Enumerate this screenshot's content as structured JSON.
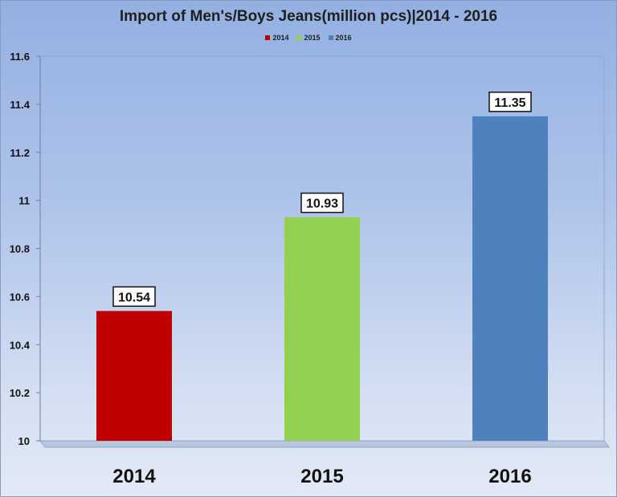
{
  "chart_data": {
    "type": "bar",
    "title": "Import of Men's/Boys Jeans(million pcs)|2014 - 2016",
    "categories": [
      "2014",
      "2015",
      "2016"
    ],
    "values": [
      10.54,
      10.93,
      11.35
    ],
    "value_labels": [
      "10.54",
      "10.93",
      "11.35"
    ],
    "colors": [
      "#c00000",
      "#92d050",
      "#4f81bd"
    ],
    "legend": [
      {
        "label": "2014",
        "color": "#c00000"
      },
      {
        "label": "2015",
        "color": "#92d050"
      },
      {
        "label": "2016",
        "color": "#4f81bd"
      }
    ],
    "legend_position": "top",
    "ylim": [
      10,
      11.6
    ],
    "yticks": [
      10,
      10.2,
      10.4,
      10.6,
      10.8,
      11,
      11.2,
      11.4,
      11.6
    ],
    "ytick_labels": [
      "10",
      "10.2",
      "10.4",
      "10.6",
      "10.8",
      "11",
      "11.2",
      "11.4",
      "11.6"
    ],
    "grid": false,
    "xlabel": "",
    "ylabel": ""
  }
}
